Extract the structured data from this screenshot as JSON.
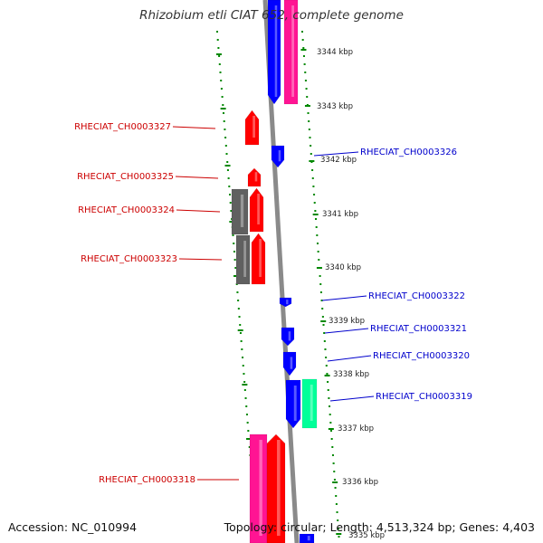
{
  "title": "Rhizobium etli CIAT 652, complete genome",
  "footer": {
    "accession": "Accession: NC_010994",
    "topology": "Topology: circular; Length: 4,513,324 bp; Genes: 4,403"
  },
  "colors": {
    "label_left": "#cc0000",
    "label_right": "#0000cc",
    "gene_red": "#ff0000",
    "gene_blue": "#0000ff",
    "gene_pink": "#ff1493",
    "gene_gray": "#606060",
    "gene_green": "#00ff99",
    "dots": "#008800",
    "backbone": "#888888"
  },
  "ticks": [
    "3344 kbp",
    "3343 kbp",
    "3342 kbp",
    "3341 kbp",
    "3340 kbp",
    "3339 kbp",
    "3338 kbp",
    "3337 kbp",
    "3336 kbp",
    "3335 kbp"
  ],
  "left_labels": [
    "RHECIAT_CH0003327",
    "RHECIAT_CH0003325",
    "RHECIAT_CH0003324",
    "RHECIAT_CH0003323",
    "RHECIAT_CH0003318"
  ],
  "right_labels": [
    "RHECIAT_CH0003326",
    "RHECIAT_CH0003322",
    "RHECIAT_CH0003321",
    "RHECIAT_CH0003320",
    "RHECIAT_CH0003319"
  ]
}
